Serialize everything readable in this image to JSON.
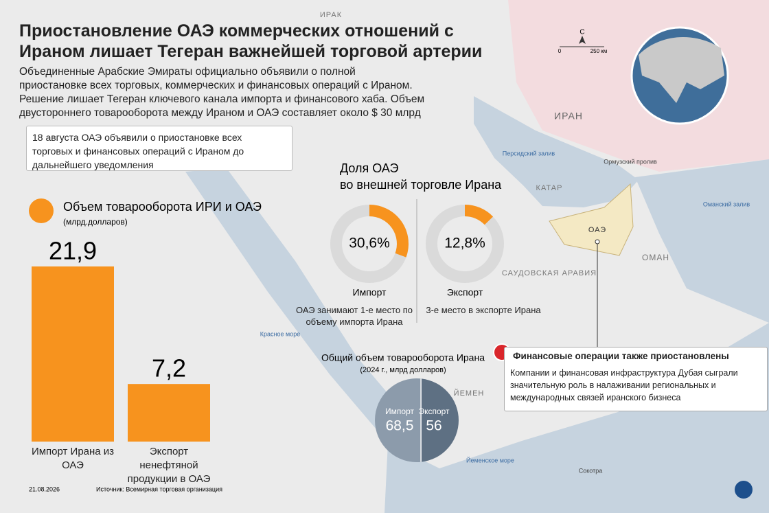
{
  "header": {
    "title": [
      "Приостановление ОАЭ коммерческих отношений с",
      "Ираном лишает Тегеран важнейшей торговой артерии"
    ],
    "lead": [
      "Объединенные Арабские Эмираты официально объявили о полной",
      "приостановке всех торговых, коммерческих и финансовых операций с Ираном.",
      "Решение лишает Тегеран ключевого канала импорта и финансового хаба. Объем",
      "двустороннего товарооборота между Ираном и ОАЭ составляет около $ 30 млрд"
    ]
  },
  "note": [
    "18 августа ОАЭ объявили о приостановке всех",
    "торговых и финансовых операций с Ираном до",
    "дальнейшего уведомления"
  ],
  "map": {
    "labels": [
      "ИРАК",
      "ИРАН",
      "Персидский залив",
      "Ормузский пролив",
      "КАТАР",
      "Оманский залив",
      "ОАЭ",
      "ОМАН",
      "САУДОВСКАЯ АРАВИЯ",
      "Красное море",
      "ЙЕМЕН",
      "Йеменское море",
      "Сокотра"
    ],
    "compass": "С",
    "scale": [
      "0",
      "250 км"
    ]
  },
  "chart_data": [
    {
      "type": "bar",
      "title": "Объем товарооборота ИРИ и ОАЭ",
      "subtitle": "(млрд.долларов)",
      "categories": [
        "Импорт Ирана из ОАЭ",
        "Экспорт ненефтяной продукции в ОАЭ"
      ],
      "values": [
        21.9,
        7.2
      ],
      "value_labels": [
        "21,9",
        "7,2"
      ],
      "color": "#f7931e"
    },
    {
      "type": "donut",
      "title": [
        "Доля ОАЭ",
        "во внешней торговле Ирана"
      ],
      "categories": [
        "Импорт",
        "Экспорт"
      ],
      "values": [
        30.6,
        12.8
      ],
      "value_labels": [
        "30,6%",
        "12,8%"
      ],
      "notes": [
        "ОАЭ занимают 1-е место по объему импорта Ирана",
        "3-е место в экспорте Ирана"
      ],
      "color": "#f7931e",
      "track_color": "#dadada"
    },
    {
      "type": "split-circle",
      "title": "Общий объем товарооборота Ирана",
      "subtitle": "(2024 г., млрд долларов)",
      "categories": [
        "Импорт",
        "Экспорт"
      ],
      "values": [
        68.5,
        56
      ],
      "value_labels": [
        "68,5",
        "56"
      ],
      "colors": [
        "#8c9bab",
        "#5e7083"
      ]
    }
  ],
  "finance": {
    "title": "Финансовые операции также приостановлены",
    "text": "Компании и финансовая инфраструктура Дубая сыграли значительную роль в налаживании региональных и международных  связей иранского бизнеса"
  },
  "footer": {
    "date": "21.08.2026",
    "source": "Источник: Всемирная торговая организация"
  }
}
